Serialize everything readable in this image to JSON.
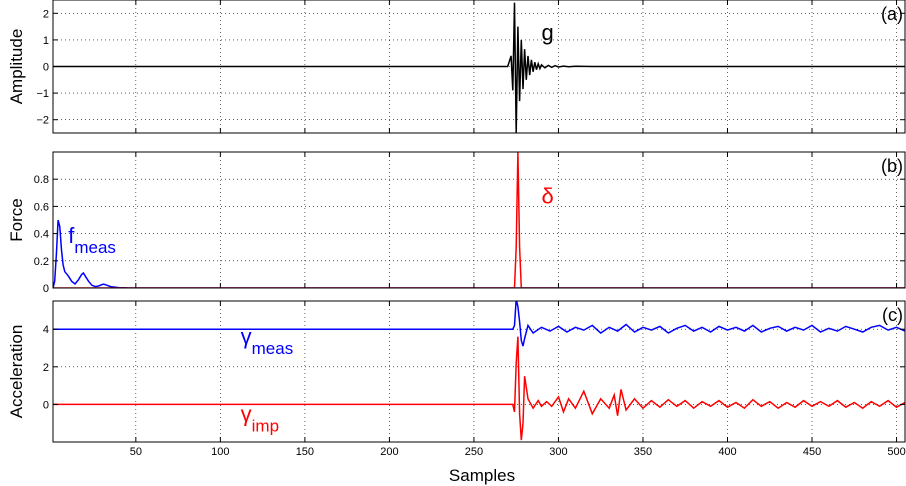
{
  "chart_data": [
    {
      "panel_label": "(a)",
      "type": "line",
      "ylabel": "Amplitude",
      "xlim": [
        1,
        505
      ],
      "ylim": [
        -2.5,
        2.5
      ],
      "yticks": [
        -2,
        -1,
        0,
        1,
        2
      ],
      "xticks": [
        50,
        100,
        150,
        200,
        250,
        300,
        350,
        400,
        450,
        500
      ],
      "grid": true,
      "annotations": [
        {
          "text": "g",
          "color": "#000000",
          "x": 290,
          "y": 1.0
        }
      ],
      "series": [
        {
          "color": "#000000",
          "x": [
            1,
            270,
            272,
            273,
            274,
            275,
            276,
            277,
            278,
            279,
            280,
            281,
            282,
            283,
            284,
            285,
            286,
            287,
            288,
            289,
            290,
            292,
            294,
            296,
            298,
            300,
            303,
            306,
            310,
            320,
            505
          ],
          "y": [
            0,
            0,
            0.4,
            -0.9,
            2.4,
            -2.5,
            1.5,
            -1.3,
            1.0,
            -0.85,
            0.65,
            -0.5,
            0.4,
            -0.32,
            0.25,
            -0.2,
            0.16,
            -0.12,
            0.1,
            -0.08,
            0.06,
            -0.05,
            0.04,
            -0.03,
            0.03,
            -0.02,
            0.015,
            -0.01,
            0.01,
            0,
            0
          ]
        }
      ]
    },
    {
      "panel_label": "(b)",
      "type": "line",
      "ylabel": "Force",
      "xlim": [
        1,
        505
      ],
      "ylim": [
        0,
        1.0
      ],
      "yticks": [
        0,
        0.2,
        0.4,
        0.6,
        0.8
      ],
      "xticks": [
        50,
        100,
        150,
        200,
        250,
        300,
        350,
        400,
        450,
        500
      ],
      "grid": true,
      "annotations": [
        {
          "text": "f",
          "sub": "meas",
          "color": "#0000ff",
          "x": 10,
          "y": 0.33
        },
        {
          "text": "δ",
          "color": "#ff0000",
          "x": 290,
          "y": 0.62
        }
      ],
      "series": [
        {
          "color": "#0000ff",
          "x": [
            1,
            2,
            3,
            4,
            5,
            6,
            7,
            8,
            10,
            12,
            14,
            16,
            18,
            19,
            20,
            22,
            24,
            26,
            28,
            30,
            31,
            33,
            35,
            38,
            40,
            45,
            50,
            505
          ],
          "y": [
            0,
            0.05,
            0.25,
            0.5,
            0.45,
            0.28,
            0.17,
            0.12,
            0.09,
            0.05,
            0.03,
            0.06,
            0.1,
            0.11,
            0.09,
            0.05,
            0.02,
            0.01,
            0.015,
            0.025,
            0.028,
            0.02,
            0.01,
            0.005,
            0.003,
            0.001,
            0,
            0
          ]
        },
        {
          "color": "#ff0000",
          "x": [
            1,
            274,
            275,
            276,
            277,
            278,
            505
          ],
          "y": [
            0,
            0,
            0.3,
            1.0,
            0.3,
            0,
            0
          ]
        }
      ]
    },
    {
      "panel_label": "(c)",
      "type": "line",
      "ylabel": "Acceleration",
      "xlabel": "Samples",
      "xlim": [
        1,
        505
      ],
      "ylim": [
        -2,
        5.5
      ],
      "yticks": [
        0,
        2,
        4
      ],
      "xticks": [
        50,
        100,
        150,
        200,
        250,
        300,
        350,
        400,
        450,
        500
      ],
      "xticklabels": [
        "50",
        "100",
        "150",
        "200",
        "250",
        "300",
        "350",
        "400",
        "450",
        "500"
      ],
      "grid": true,
      "annotations": [
        {
          "text": "γ",
          "sub": "meas",
          "color": "#0000ff",
          "x": 112,
          "y": 3.2
        },
        {
          "text": "γ",
          "sub": "imp",
          "color": "#ff0000",
          "x": 112,
          "y": -0.9
        }
      ],
      "series": [
        {
          "color": "#0000ff",
          "x": [
            1,
            273,
            274,
            275,
            276,
            277,
            278,
            279,
            280,
            282,
            285,
            290,
            295,
            300,
            305,
            310,
            315,
            320,
            325,
            330,
            335,
            340,
            345,
            350,
            355,
            360,
            365,
            370,
            375,
            380,
            385,
            390,
            395,
            400,
            405,
            410,
            415,
            420,
            425,
            430,
            435,
            440,
            445,
            450,
            455,
            460,
            465,
            470,
            475,
            480,
            485,
            490,
            495,
            500,
            505
          ],
          "y": [
            4,
            4,
            4.2,
            5.6,
            5.2,
            4.4,
            3.4,
            3.1,
            3.5,
            4.2,
            3.8,
            4.1,
            3.9,
            4.15,
            3.85,
            4.1,
            3.95,
            4.2,
            3.8,
            4.1,
            3.9,
            4.25,
            3.85,
            4.1,
            3.95,
            4.15,
            3.8,
            4.05,
            4.2,
            3.9,
            4.1,
            3.85,
            4.15,
            3.95,
            4.1,
            3.9,
            4.2,
            3.85,
            4.05,
            4.15,
            3.9,
            4.1,
            3.95,
            4.2,
            3.85,
            4.05,
            3.9,
            4.15,
            4.0,
            3.85,
            4.1,
            4.2,
            3.95,
            4.1,
            3.9
          ]
        },
        {
          "color": "#ff0000",
          "x": [
            1,
            273,
            274,
            275,
            276,
            277,
            278,
            279,
            280,
            282,
            285,
            288,
            290,
            293,
            296,
            300,
            303,
            306,
            310,
            315,
            320,
            325,
            330,
            333,
            335,
            337,
            340,
            345,
            350,
            355,
            360,
            365,
            370,
            375,
            380,
            385,
            390,
            395,
            400,
            405,
            410,
            415,
            420,
            425,
            430,
            435,
            440,
            445,
            450,
            455,
            460,
            465,
            470,
            475,
            480,
            485,
            490,
            495,
            500,
            505
          ],
          "y": [
            0,
            0,
            -0.4,
            2.2,
            3.6,
            -0.5,
            -1.9,
            -1.0,
            1.5,
            0.3,
            -0.2,
            0.2,
            -0.1,
            0.15,
            -0.1,
            0.4,
            -0.4,
            0.3,
            -0.2,
            0.7,
            -0.5,
            0.3,
            -0.2,
            0.5,
            -0.6,
            0.8,
            -0.3,
            0.3,
            -0.2,
            0.2,
            -0.15,
            0.25,
            -0.1,
            0.2,
            -0.2,
            0.15,
            -0.1,
            0.2,
            -0.15,
            0.1,
            -0.2,
            0.25,
            -0.1,
            0.15,
            -0.2,
            0.1,
            -0.15,
            0.2,
            -0.1,
            0.15,
            -0.1,
            0.2,
            -0.15,
            0.1,
            -0.2,
            0.15,
            -0.1,
            0.2,
            -0.15,
            0.1
          ]
        }
      ]
    }
  ]
}
